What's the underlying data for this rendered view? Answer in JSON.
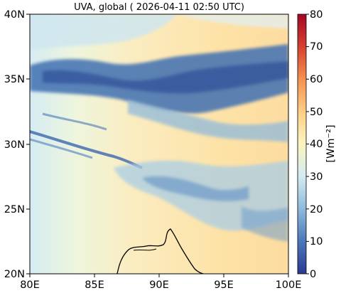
{
  "title": "UVA, global ( 2026-04-11 02:50 UTC)",
  "map": {
    "lon_ticks": [
      "80E",
      "85E",
      "90E",
      "95E",
      "100E"
    ],
    "lat_ticks": [
      "20N",
      "25N",
      "30N",
      "35N",
      "40N"
    ],
    "extent": {
      "lon": [
        80,
        100
      ],
      "lat": [
        20,
        40
      ]
    },
    "field_range": [
      0,
      80
    ]
  },
  "colorbar": {
    "label": "[Wm⁻²]",
    "ticks": [
      "0",
      "10",
      "20",
      "30",
      "40",
      "50",
      "60",
      "70",
      "80"
    ],
    "colors": [
      "#2a3a93",
      "#4a78b8",
      "#8fbadb",
      "#d3ebf2",
      "#fdf4c0",
      "#fdcf85",
      "#f59150",
      "#d7402f",
      "#a50626"
    ]
  }
}
